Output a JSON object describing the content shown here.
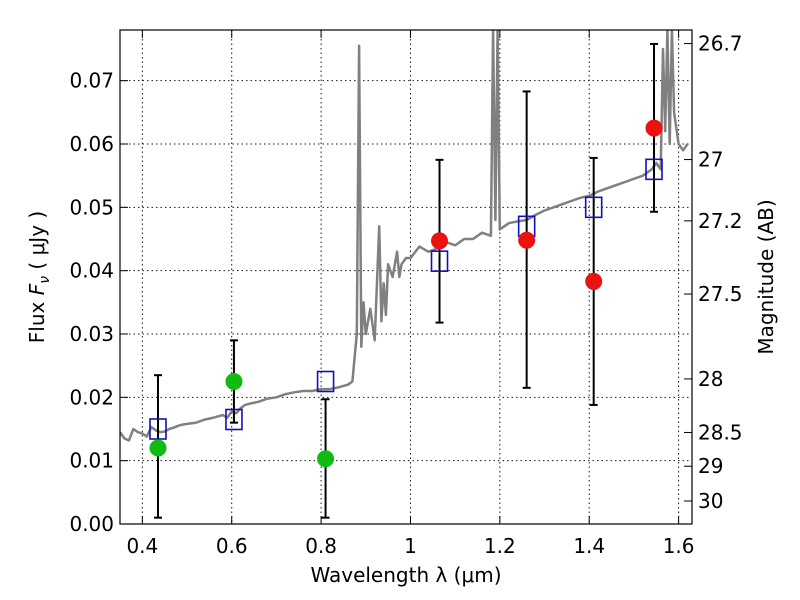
{
  "chart_data": {
    "type": "scatter",
    "xlabel": "Wavelength  λ (μm)",
    "ylabel": "Flux  F_ν  ( μJy )",
    "ylabel_parts": {
      "pre": "Flux ",
      "sym": "F",
      "sub": "ν",
      "post": "  ( μJy )"
    },
    "y2label": "Magnitude (AB)",
    "xlim": [
      0.35,
      1.63
    ],
    "ylim": [
      0.0,
      0.078
    ],
    "xticks": [
      0.4,
      0.6,
      0.8,
      1.0,
      1.2,
      1.4,
      1.6
    ],
    "xtick_labels": [
      "0.4",
      "0.6",
      "0.8",
      "1",
      "1.2",
      "1.4",
      "1.6"
    ],
    "yticks": [
      0.0,
      0.01,
      0.02,
      0.03,
      0.04,
      0.05,
      0.06,
      0.07
    ],
    "ytick_labels": [
      "0.00",
      "0.01",
      "0.02",
      "0.03",
      "0.04",
      "0.05",
      "0.06",
      "0.07"
    ],
    "y2ticks": [
      {
        "mag": 26.7,
        "label": "26.7"
      },
      {
        "mag": 27.0,
        "label": "27"
      },
      {
        "mag": 27.2,
        "label": "27.2"
      },
      {
        "mag": 27.5,
        "label": "27.5"
      },
      {
        "mag": 28.0,
        "label": "28"
      },
      {
        "mag": 28.5,
        "label": "28.5"
      },
      {
        "mag": 29.0,
        "label": "29"
      },
      {
        "mag": 30.0,
        "label": "30"
      }
    ],
    "grid": true,
    "colors": {
      "model": "#808080",
      "green": "#11bb11",
      "red": "#ee1111",
      "square": "#1111bb",
      "errorbar": "#000000"
    },
    "series": [
      {
        "kind": "model",
        "x": [
          0.35,
          0.36,
          0.37,
          0.38,
          0.39,
          0.4,
          0.41,
          0.42,
          0.43,
          0.44,
          0.45,
          0.46,
          0.47,
          0.48,
          0.49,
          0.5,
          0.52,
          0.54,
          0.56,
          0.58,
          0.59,
          0.6,
          0.61,
          0.62,
          0.63,
          0.64,
          0.66,
          0.68,
          0.7,
          0.72,
          0.74,
          0.76,
          0.78,
          0.8,
          0.82,
          0.84,
          0.86,
          0.87,
          0.88,
          0.885,
          0.89,
          0.895,
          0.9,
          0.91,
          0.92,
          0.93,
          0.935,
          0.94,
          0.945,
          0.95,
          0.96,
          0.97,
          0.975,
          0.98,
          0.99,
          1.0,
          1.02,
          1.04,
          1.06,
          1.08,
          1.1,
          1.12,
          1.14,
          1.16,
          1.18,
          1.185,
          1.19,
          1.195,
          1.2,
          1.21,
          1.22,
          1.24,
          1.26,
          1.28,
          1.3,
          1.32,
          1.34,
          1.36,
          1.38,
          1.4,
          1.42,
          1.44,
          1.46,
          1.48,
          1.5,
          1.52,
          1.54,
          1.55,
          1.56,
          1.565,
          1.57,
          1.575,
          1.58,
          1.585,
          1.59,
          1.6,
          1.61,
          1.62
        ],
        "y": [
          0.0145,
          0.0135,
          0.0132,
          0.015,
          0.0145,
          0.0143,
          0.0138,
          0.0153,
          0.0148,
          0.0145,
          0.0146,
          0.015,
          0.0152,
          0.0155,
          0.0157,
          0.0158,
          0.016,
          0.0165,
          0.0168,
          0.0172,
          0.0168,
          0.0178,
          0.0175,
          0.0183,
          0.0188,
          0.019,
          0.0193,
          0.0198,
          0.02,
          0.0205,
          0.0208,
          0.021,
          0.021,
          0.0213,
          0.0213,
          0.0216,
          0.022,
          0.0225,
          0.03,
          0.0755,
          0.028,
          0.035,
          0.03,
          0.034,
          0.029,
          0.047,
          0.032,
          0.038,
          0.033,
          0.041,
          0.039,
          0.043,
          0.039,
          0.041,
          0.042,
          0.042,
          0.0438,
          0.043,
          0.0435,
          0.0445,
          0.044,
          0.045,
          0.045,
          0.046,
          0.0455,
          0.078,
          0.048,
          0.078,
          0.0465,
          0.047,
          0.0475,
          0.0478,
          0.048,
          0.0488,
          0.0495,
          0.05,
          0.0505,
          0.051,
          0.0515,
          0.0518,
          0.0525,
          0.053,
          0.0535,
          0.054,
          0.0545,
          0.055,
          0.056,
          0.057,
          0.056,
          0.075,
          0.062,
          0.078,
          0.06,
          0.078,
          0.065,
          0.06,
          0.059,
          0.06
        ]
      },
      {
        "kind": "squares",
        "x": [
          0.435,
          0.605,
          0.81,
          1.065,
          1.26,
          1.41,
          1.545
        ],
        "y": [
          0.015,
          0.0165,
          0.0225,
          0.0415,
          0.047,
          0.05,
          0.056
        ]
      },
      {
        "kind": "green-points",
        "x": [
          0.435,
          0.605,
          0.81
        ],
        "y": [
          0.012,
          0.0225,
          0.0103
        ],
        "err_low": [
          0.001,
          0.016,
          0.001
        ],
        "err_high": [
          0.0235,
          0.029,
          0.0197
        ]
      },
      {
        "kind": "red-points",
        "x": [
          1.065,
          1.26,
          1.41,
          1.545
        ],
        "y": [
          0.0447,
          0.0448,
          0.0383,
          0.0625
        ],
        "err_low": [
          0.0318,
          0.0215,
          0.0188,
          0.0493
        ],
        "err_high": [
          0.0575,
          0.0683,
          0.0578,
          0.0758
        ]
      }
    ]
  }
}
